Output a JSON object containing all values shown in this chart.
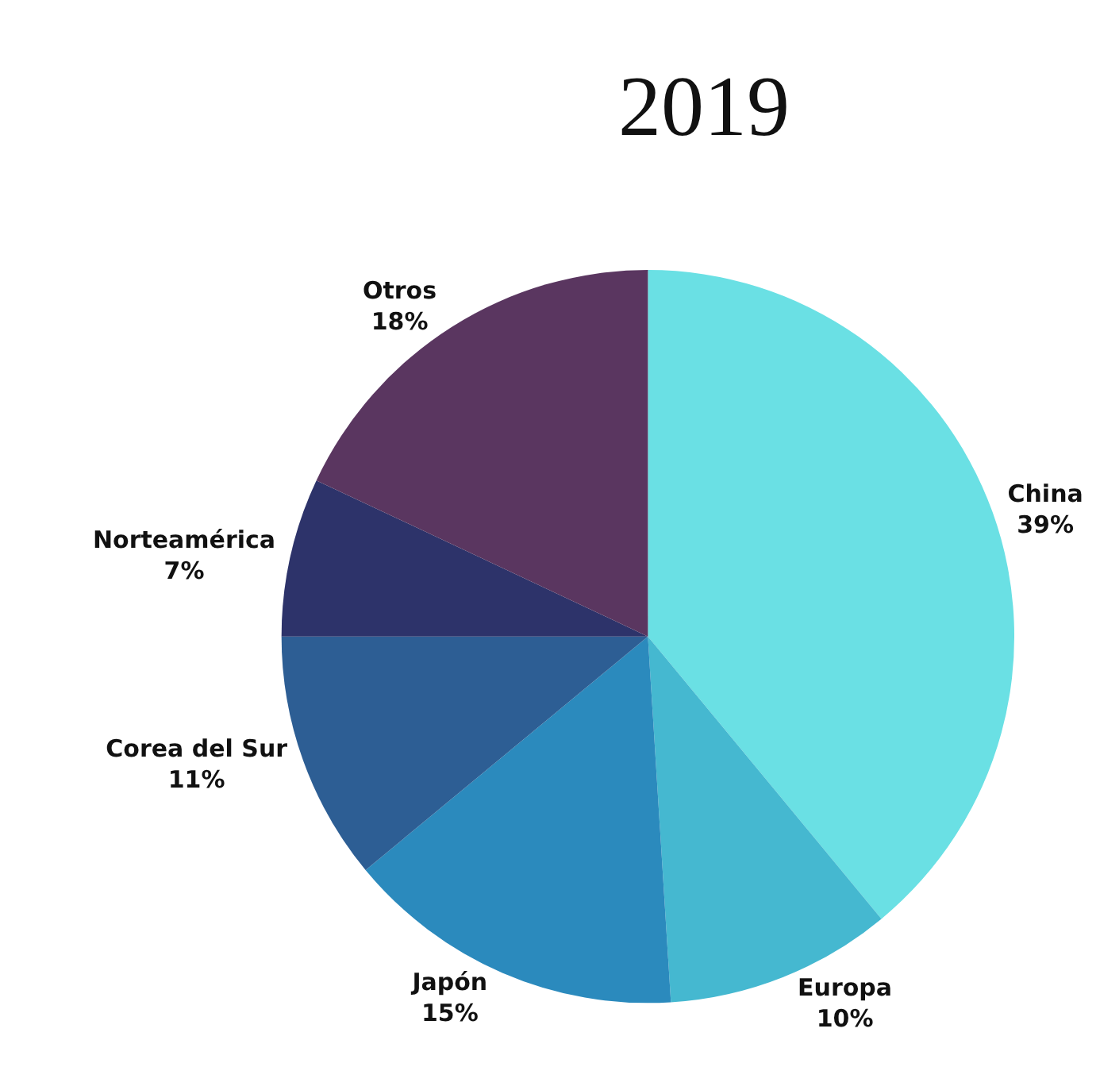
{
  "chart_data": {
    "type": "pie",
    "title": "2019",
    "categories": [
      "China",
      "Europa",
      "Japón",
      "Corea del Sur",
      "Norteamérica",
      "Otros"
    ],
    "values": [
      39,
      10,
      15,
      11,
      7,
      18
    ],
    "value_labels": [
      "39%",
      "10%",
      "15%",
      "11%",
      "7%",
      "18%"
    ],
    "colors": [
      "#6ae0e4",
      "#45b8d0",
      "#2b8abd",
      "#2d5e94",
      "#2d336a",
      "#5a3660"
    ],
    "legend": false
  }
}
